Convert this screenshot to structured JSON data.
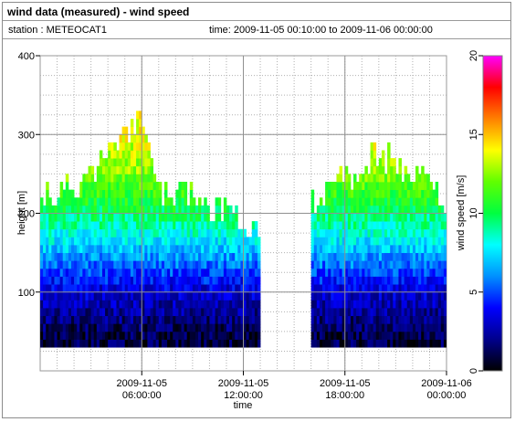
{
  "header": {
    "title": "wind data (measured) - wind speed",
    "station": "station : METEOCAT1",
    "time_range": "time: 2009-11-05 00:10:00 to 2009-11-06 00:00:00"
  },
  "chart_data": {
    "type": "heatmap",
    "title": "wind data (measured) - wind speed",
    "xlabel": "time",
    "ylabel": "height [m]",
    "x_ticks": [
      {
        "hour": 6,
        "line1": "2009-11-05",
        "line2": "06:00:00"
      },
      {
        "hour": 12,
        "line1": "2009-11-05",
        "line2": "12:00:00"
      },
      {
        "hour": 18,
        "line1": "2009-11-05",
        "line2": "18:00:00"
      },
      {
        "hour": 24,
        "line1": "2009-11-06",
        "line2": "00:00:00"
      }
    ],
    "xlim_hours": [
      0,
      24
    ],
    "y_ticks": [
      100,
      200,
      300,
      400
    ],
    "ylim": [
      0,
      400
    ],
    "grid": true,
    "data_gap_hours": [
      13.8,
      16.0
    ],
    "colorbar": {
      "label": "wind speed [m/s]",
      "range": [
        0,
        20
      ],
      "ticks": [
        "0",
        "5",
        "10",
        "15",
        "20"
      ]
    },
    "series": [
      {
        "hours": [
          0,
          2,
          4,
          5,
          6,
          7,
          9,
          11,
          13
        ],
        "top_height_m": [
          220,
          230,
          270,
          300,
          320,
          230,
          210,
          200,
          170
        ]
      },
      {
        "hours": [
          16,
          18,
          20,
          22,
          24
        ],
        "top_height_m": [
          210,
          240,
          270,
          250,
          210
        ]
      }
    ],
    "speed_profile": [
      {
        "height_m": 40,
        "speed_ms": 1
      },
      {
        "height_m": 100,
        "speed_ms": 3.5
      },
      {
        "height_m": 150,
        "speed_ms": 7
      },
      {
        "height_m": 200,
        "speed_ms": 10
      },
      {
        "height_m": 250,
        "speed_ms": 12.5
      },
      {
        "height_m": 300,
        "speed_ms": 14
      }
    ]
  }
}
